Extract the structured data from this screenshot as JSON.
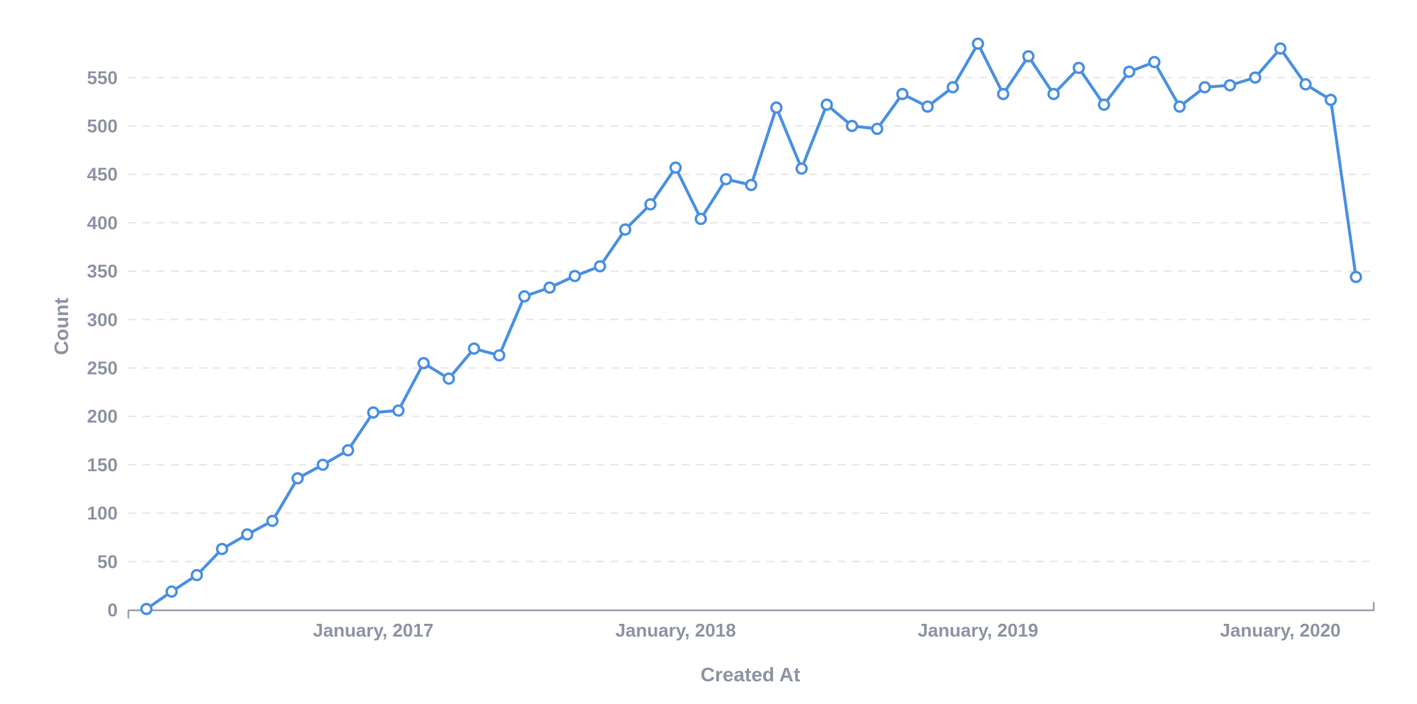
{
  "chart_data": {
    "type": "line",
    "title": "",
    "xlabel": "Created At",
    "ylabel": "Count",
    "x": [
      "April, 2016",
      "May, 2016",
      "June, 2016",
      "July, 2016",
      "August, 2016",
      "September, 2016",
      "October, 2016",
      "November, 2016",
      "December, 2016",
      "January, 2017",
      "February, 2017",
      "March, 2017",
      "April, 2017",
      "May, 2017",
      "June, 2017",
      "July, 2017",
      "August, 2017",
      "September, 2017",
      "October, 2017",
      "November, 2017",
      "December, 2017",
      "January, 2018",
      "February, 2018",
      "March, 2018",
      "April, 2018",
      "May, 2018",
      "June, 2018",
      "July, 2018",
      "August, 2018",
      "September, 2018",
      "October, 2018",
      "November, 2018",
      "December, 2018",
      "January, 2019",
      "February, 2019",
      "March, 2019",
      "April, 2019",
      "May, 2019",
      "June, 2019",
      "July, 2019",
      "August, 2019",
      "September, 2019",
      "October, 2019",
      "November, 2019",
      "December, 2019",
      "January, 2020",
      "February, 2020",
      "March, 2020",
      "April, 2020"
    ],
    "values": [
      1,
      19,
      36,
      63,
      78,
      92,
      136,
      150,
      165,
      204,
      206,
      255,
      239,
      270,
      263,
      324,
      333,
      345,
      355,
      393,
      419,
      457,
      404,
      445,
      439,
      519,
      456,
      522,
      500,
      497,
      533,
      520,
      540,
      585,
      533,
      572,
      533,
      560,
      522,
      556,
      566,
      520,
      540,
      542,
      550,
      580,
      543,
      527,
      344
    ],
    "x_tick_labels": [
      "January, 2017",
      "January, 2018",
      "January, 2019",
      "January, 2020"
    ],
    "y_ticks": [
      0,
      50,
      100,
      150,
      200,
      250,
      300,
      350,
      400,
      450,
      500,
      550
    ],
    "ylim": [
      0,
      600
    ],
    "grid": "horizontal-dashed",
    "legend": "none",
    "marker": "open-circle",
    "colors": {
      "line": "#4a90e2",
      "marker_fill": "#ffffff",
      "gridline": "#e7e7e7",
      "axis_line": "#9aa0ab",
      "label_text": "#8e94a4"
    }
  }
}
